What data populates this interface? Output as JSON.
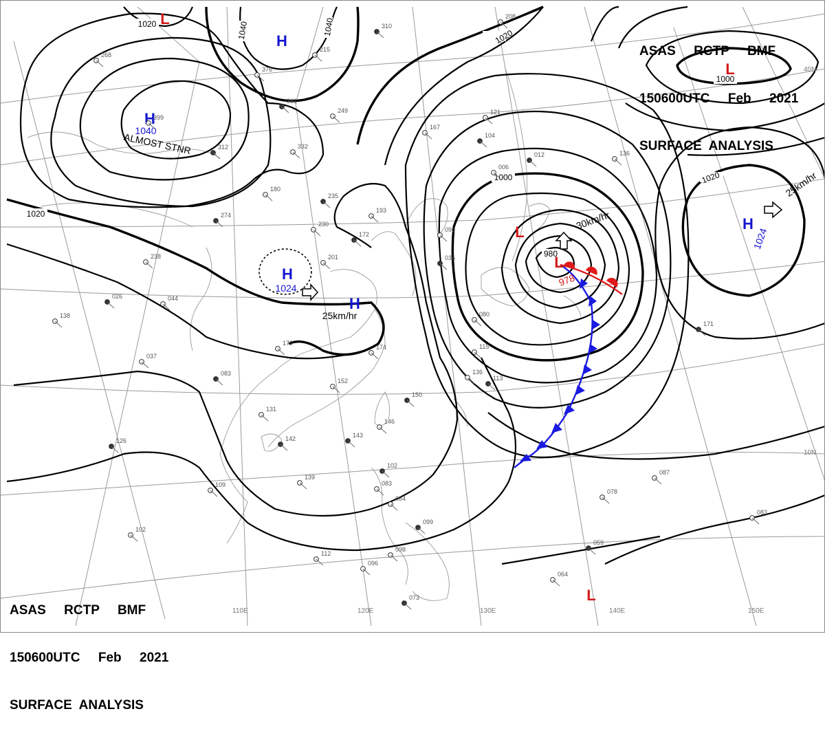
{
  "header_top": {
    "line1": "ASAS     RCTP     BMF",
    "line2": "150600UTC     Feb     2021",
    "line3": "SURFACE  ANALYSIS"
  },
  "header_bottom": {
    "line1": "ASAS     RCTP     BMF",
    "line2": "150600UTC     Feb     2021",
    "line3": "SURFACE  ANALYSIS"
  },
  "isobar_labels": [
    "1020",
    "1040",
    "1040",
    "1020",
    "1000",
    "1020",
    "1020",
    "1000",
    "980"
  ],
  "pressure_centers": [
    {
      "type": "H",
      "value": "1040",
      "note": "ALMOST STNR"
    },
    {
      "type": "H",
      "value": ""
    },
    {
      "type": "H",
      "value": "1024",
      "motion": "25km/hr"
    },
    {
      "type": "H",
      "value": ""
    },
    {
      "type": "L",
      "value": "978",
      "motion": "30km/hr"
    },
    {
      "type": "L",
      "value": ""
    },
    {
      "type": "H",
      "value": "1024",
      "motion": "25km/hr"
    },
    {
      "type": "L",
      "value": ""
    },
    {
      "type": "L",
      "value": ""
    },
    {
      "type": "L",
      "value": ""
    }
  ],
  "longitude_labels": [
    "110E",
    "120E",
    "130E",
    "140E",
    "150E"
  ],
  "latitude_labels": [
    "40N",
    "10N"
  ],
  "station_numbers": [
    "310",
    "215",
    "376",
    "381",
    "249",
    "399",
    "312",
    "332",
    "167",
    "104",
    "121",
    "006",
    "012",
    "136",
    "180",
    "235",
    "230",
    "201",
    "172",
    "193",
    "238",
    "026",
    "044",
    "096",
    "036",
    "080",
    "115",
    "113",
    "136",
    "152",
    "150",
    "146",
    "131",
    "142",
    "139",
    "109",
    "102",
    "083",
    "084",
    "099",
    "098",
    "096",
    "073",
    "087",
    "078",
    "059",
    "064",
    "083",
    "171",
    "174",
    "170",
    "083",
    "138",
    "037",
    "126",
    "102",
    "112",
    "274",
    "268",
    "208",
    "143"
  ],
  "legend_colors": {
    "high": "#1515d0",
    "low": "#d21a1a",
    "cold_front": "#1a1ae0",
    "warm_front": "#e01a1a"
  }
}
